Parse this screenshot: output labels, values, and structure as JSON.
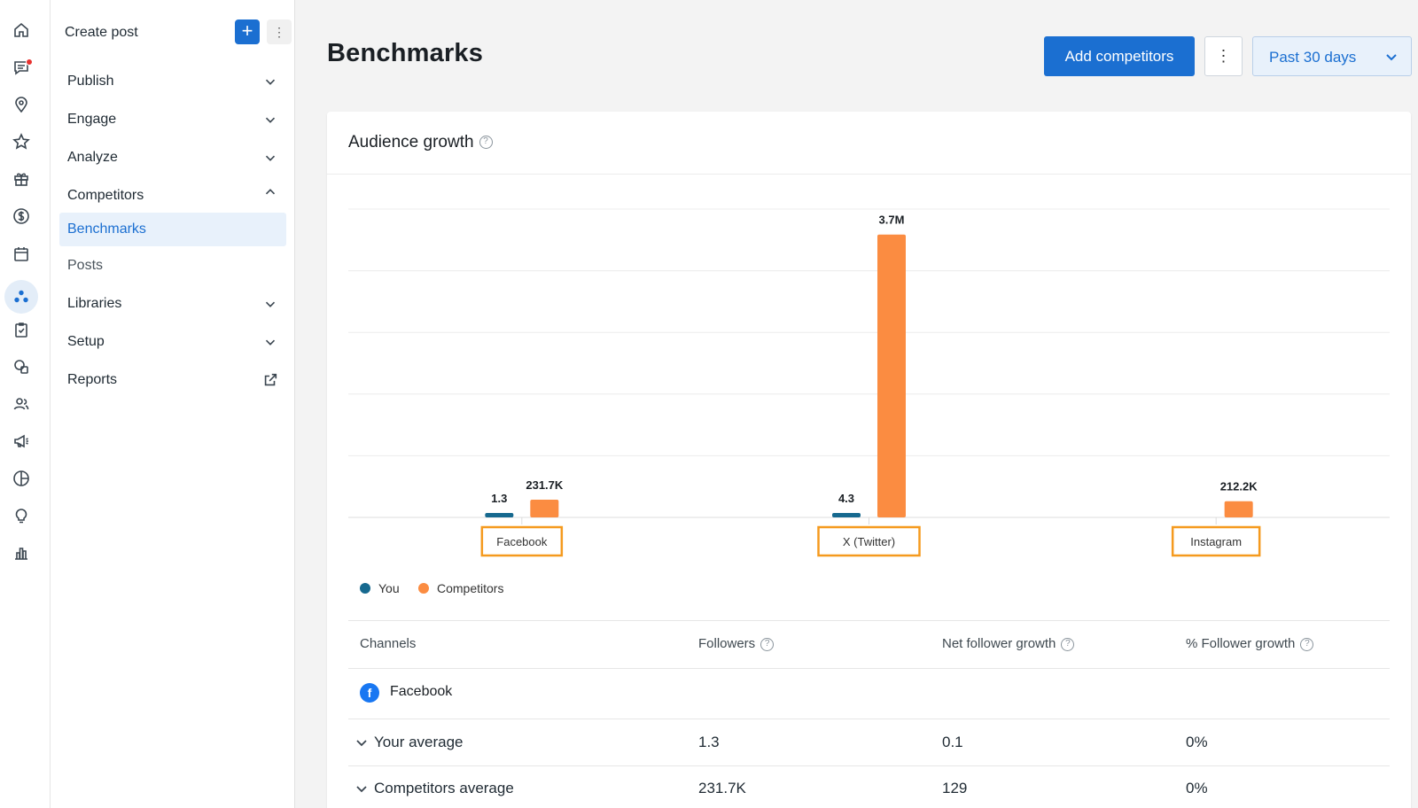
{
  "rail": {
    "icons": [
      "home-icon",
      "messages-icon",
      "location-pin-icon",
      "star-icon",
      "gift-icon",
      "dollar-icon",
      "calendar-icon",
      "competitors-icon",
      "tasks-icon",
      "chat-bubbles-icon",
      "people-icon",
      "megaphone-icon",
      "pie-chart-icon",
      "lightbulb-icon",
      "bar-chart-icon"
    ]
  },
  "nav": {
    "create_label": "Create post",
    "create_plus": "+",
    "create_more": "⋮",
    "items": [
      {
        "label": "Publish"
      },
      {
        "label": "Engage"
      },
      {
        "label": "Analyze"
      },
      {
        "label": "Competitors"
      },
      {
        "label": "Libraries"
      },
      {
        "label": "Setup"
      },
      {
        "label": "Reports"
      }
    ],
    "sub_items": [
      {
        "label": "Benchmarks",
        "active": true
      },
      {
        "label": "Posts",
        "active": false
      }
    ]
  },
  "header": {
    "title": "Benchmarks",
    "add_button": "Add competitors",
    "more_button": "⋮",
    "range": "Past 30 days"
  },
  "card": {
    "title": "Audience growth",
    "help": "?"
  },
  "colors": {
    "you": "#16698f",
    "competitors": "#fb8c41",
    "accent": "#1b6fd1",
    "highlight_box": "#f59a1e"
  },
  "chart_data": {
    "type": "bar",
    "categories": [
      "Facebook",
      "X (Twitter)",
      "Instagram"
    ],
    "series": [
      {
        "name": "You",
        "values": [
          1.3,
          4.3,
          null
        ],
        "labels": [
          "1.3",
          "4.3",
          ""
        ]
      },
      {
        "name": "Competitors",
        "values": [
          231700,
          3700000,
          212200
        ],
        "labels": [
          "231.7K",
          "3.7M",
          "212.2K"
        ]
      }
    ],
    "legend_position": "bottom-left",
    "grid": true
  },
  "table": {
    "headers": {
      "channels": "Channels",
      "followers": "Followers",
      "net_growth": "Net follower growth",
      "pct_growth": "% Follower growth"
    },
    "group_label": "Facebook",
    "group_icon": "f",
    "rows": [
      {
        "label": "Your average",
        "followers": "1.3",
        "net": "0.1",
        "pct": "0%"
      },
      {
        "label": "Competitors average",
        "followers": "231.7K",
        "net": "129",
        "pct": "0%"
      }
    ]
  }
}
